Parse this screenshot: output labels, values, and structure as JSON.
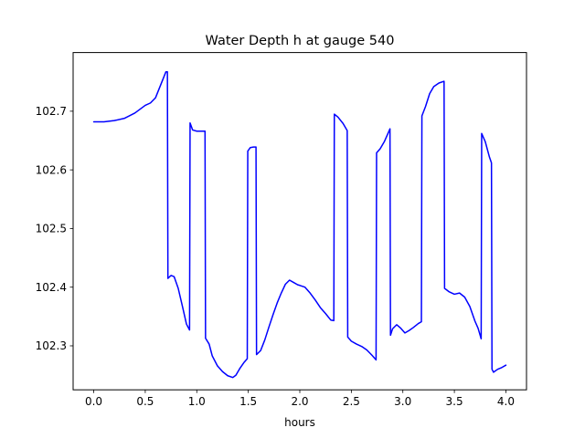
{
  "chart_data": {
    "type": "line",
    "title": "Water Depth h at gauge 540",
    "xlabel": "hours",
    "ylabel": "",
    "xlim": [
      -0.2,
      4.2
    ],
    "ylim": [
      102.225,
      102.8
    ],
    "xticks": [
      0.0,
      0.5,
      1.0,
      1.5,
      2.0,
      2.5,
      3.0,
      3.5,
      4.0
    ],
    "xtick_labels": [
      "0.0",
      "0.5",
      "1.0",
      "1.5",
      "2.0",
      "2.5",
      "3.0",
      "3.5",
      "4.0"
    ],
    "yticks": [
      102.3,
      102.4,
      102.5,
      102.6,
      102.7
    ],
    "ytick_labels": [
      "102.3",
      "102.4",
      "102.5",
      "102.6",
      "102.7"
    ],
    "grid": false,
    "series": [
      {
        "color": "#0000ff",
        "x": [
          0.0,
          0.1,
          0.2,
          0.3,
          0.4,
          0.5,
          0.55,
          0.6,
          0.65,
          0.7,
          0.715,
          0.72,
          0.75,
          0.78,
          0.82,
          0.86,
          0.9,
          0.93,
          0.935,
          0.96,
          1.0,
          1.05,
          1.08,
          1.085,
          1.12,
          1.15,
          1.2,
          1.25,
          1.3,
          1.35,
          1.38,
          1.42,
          1.46,
          1.49,
          1.495,
          1.52,
          1.55,
          1.575,
          1.58,
          1.62,
          1.66,
          1.7,
          1.74,
          1.78,
          1.82,
          1.86,
          1.9,
          1.94,
          1.98,
          2.0,
          2.05,
          2.1,
          2.15,
          2.2,
          2.25,
          2.3,
          2.33,
          2.335,
          2.37,
          2.42,
          2.46,
          2.465,
          2.5,
          2.55,
          2.6,
          2.65,
          2.7,
          2.74,
          2.745,
          2.78,
          2.82,
          2.86,
          2.875,
          2.88,
          2.9,
          2.94,
          2.98,
          3.02,
          3.06,
          3.1,
          3.15,
          3.18,
          3.185,
          3.22,
          3.26,
          3.3,
          3.35,
          3.4,
          3.405,
          3.45,
          3.5,
          3.55,
          3.6,
          3.65,
          3.7,
          3.73,
          3.76,
          3.765,
          3.8,
          3.84,
          3.86,
          3.865,
          3.88,
          3.92,
          3.96,
          4.0
        ],
        "y": [
          102.682,
          102.682,
          102.684,
          102.688,
          102.697,
          102.71,
          102.714,
          102.723,
          102.745,
          102.767,
          102.767,
          102.415,
          102.42,
          102.418,
          102.398,
          102.368,
          102.337,
          102.327,
          102.68,
          102.668,
          102.666,
          102.666,
          102.666,
          102.313,
          102.303,
          102.283,
          102.266,
          102.256,
          102.249,
          102.246,
          102.25,
          102.262,
          102.272,
          102.278,
          102.632,
          102.638,
          102.639,
          102.639,
          102.285,
          102.292,
          102.31,
          102.332,
          102.353,
          102.373,
          102.39,
          102.405,
          102.412,
          102.408,
          102.404,
          102.403,
          102.4,
          102.39,
          102.378,
          102.365,
          102.355,
          102.344,
          102.343,
          102.695,
          102.69,
          102.679,
          102.667,
          102.315,
          102.308,
          102.303,
          102.299,
          102.293,
          102.284,
          102.276,
          102.629,
          102.636,
          102.648,
          102.664,
          102.67,
          102.318,
          102.329,
          102.336,
          102.33,
          102.322,
          102.326,
          102.331,
          102.338,
          102.341,
          102.692,
          102.708,
          102.73,
          102.742,
          102.748,
          102.751,
          102.398,
          102.392,
          102.388,
          102.39,
          102.383,
          102.367,
          102.342,
          102.33,
          102.312,
          102.662,
          102.648,
          102.622,
          102.612,
          102.26,
          102.255,
          102.26,
          102.263,
          102.267
        ]
      }
    ]
  }
}
